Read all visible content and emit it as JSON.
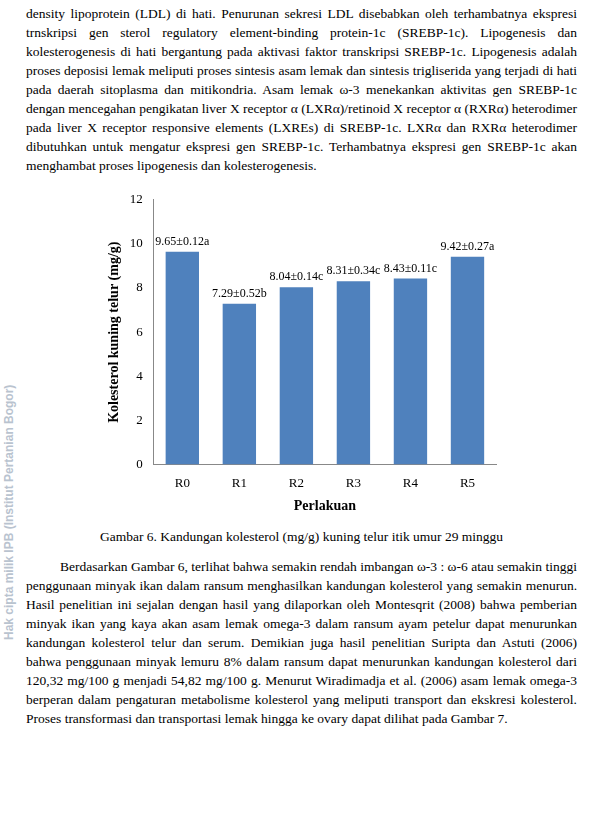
{
  "watermark": "Hak cipta milik IPB (Institut Pertanian Bogor)",
  "paragraph_1": "density lipoprotein (LDL) di hati. Penurunan sekresi LDL disebabkan oleh terhambatnya ekspresi trnskripsi gen sterol regulatory element-binding protein-1c (SREBP-1c). Lipogenesis dan kolesterogenesis di hati bergantung pada aktivasi faktor transkripsi SREBP-1c. Lipogenesis adalah proses deposisi lemak meliputi proses sintesis asam lemak dan sintesis trigliserida yang terjadi di hati pada daerah sitoplasma dan mitikondria. Asam lemak ω-3 menekankan aktivitas gen SREBP-1c dengan mencegahan pengikatan liver X receptor α (LXRα)/retinoid X receptor α (RXRα) heterodimer pada liver X receptor responsive elements (LXREs) di SREBP-1c. LXRα dan RXRα heterodimer dibutuhkan untuk mengatur ekspresi gen SREBP-1c. Terhambatnya ekspresi gen SREBP-1c akan menghambat proses lipogenesis dan kolesterogenesis.",
  "chart_data": {
    "type": "bar",
    "x_label": "Perlakuan",
    "y_label": "Kolesterol kuning telur (mg/g)",
    "categories": [
      "R0",
      "R1",
      "R2",
      "R3",
      "R4",
      "R5"
    ],
    "values": [
      9.65,
      7.29,
      8.04,
      8.31,
      8.43,
      9.42
    ],
    "value_labels": [
      "9.65±0.12a",
      "7.29±0.52b",
      "8.04±0.14c",
      "8.31±0.34c",
      "8.43±0.11c",
      "9.42±0.27a"
    ],
    "data_labels": true,
    "color": "#4f81bd",
    "ylim": [
      0,
      12
    ],
    "yticks": [
      0,
      2,
      4,
      6,
      8,
      10,
      12
    ],
    "grid": false
  },
  "caption": "Gambar 6.  Kandungan kolesterol (mg/g) kuning telur itik umur 29 minggu",
  "paragraph_2": "Berdasarkan Gambar 6, terlihat bahwa semakin rendah imbangan ω-3 : ω-6 atau semakin tinggi penggunaan minyak ikan dalam ransum menghasilkan kandungan kolesterol yang semakin menurun. Hasil penelitian ini sejalan dengan hasil yang dilaporkan oleh Montesqrit (2008) bahwa pemberian minyak ikan yang kaya akan asam lemak omega-3 dalam ransum ayam petelur dapat menurunkan kandungan kolesterol telur dan serum. Demikian juga hasil penelitian Suripta dan Astuti (2006) bahwa penggunaan minyak lemuru 8% dalam ransum dapat menurunkan kandungan kolesterol dari 120,32 mg/100 g menjadi 54,82 mg/100 g. Menurut Wiradimadja et al. (2006) asam lemak omega-3 berperan dalam pengaturan metabolisme kolesterol yang meliputi transport dan ekskresi kolesterol. Proses transformasi dan transportasi lemak hingga ke ovary dapat dilihat pada Gambar 7."
}
